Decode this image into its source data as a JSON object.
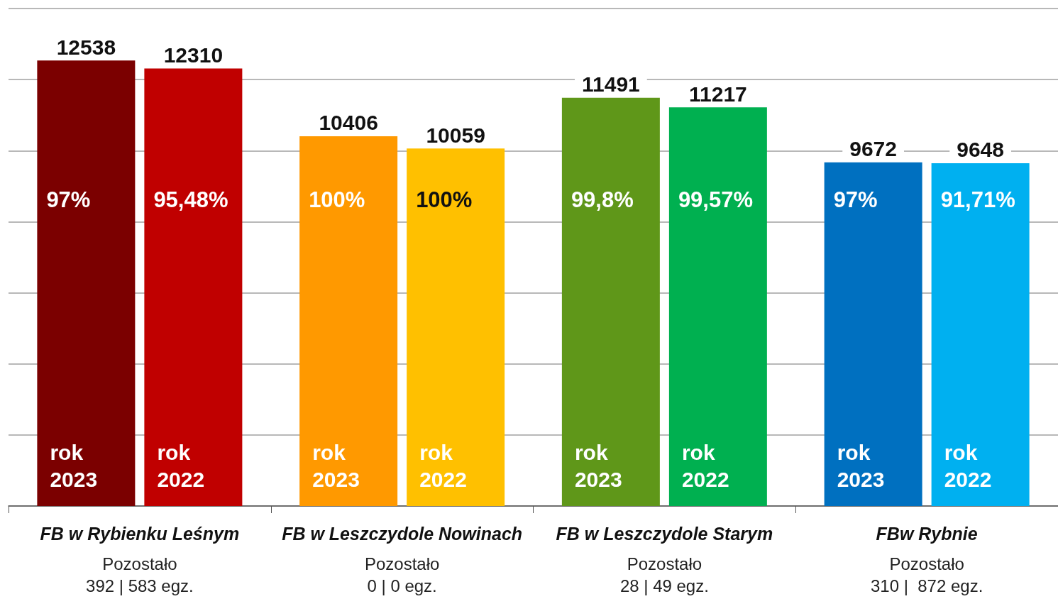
{
  "chart_data": {
    "type": "bar",
    "categories": [
      "FB w Rybienku Leśnym\n\nPozostało\n392 | 583 egz.",
      "FB w Leszczydole Nowinach\n\nPozostało\n0 | 0 egz.",
      "FB w Leszczydole Starym\n\nPozostało\n28 | 49 egz.",
      "FBw Rybnie\n\nPozostało\n310 |  872 egz."
    ],
    "series": [
      {
        "name": "rok\n2023",
        "colors": [
          "#7b0000",
          "#ff9900",
          "#5f9719",
          "#0070c0"
        ],
        "values": [
          12538,
          10406,
          11491,
          9672
        ]
      },
      {
        "name": "rok\n2022",
        "colors": [
          "#c00000",
          "#ffc000",
          "#00b050",
          "#00b0f0"
        ],
        "values": [
          12310,
          10059,
          11217,
          9648
        ]
      }
    ],
    "ylim": [
      0,
      14000
    ],
    "yticks": [
      0,
      2000,
      4000,
      6000,
      8000,
      10000,
      12000,
      14000
    ],
    "grid": "y",
    "tick_labels": "x",
    "data_labels": true,
    "annotations": [
      "97%",
      "95,48%",
      "100%",
      "100%",
      "99,8%",
      "99,57%",
      "97%",
      "91,71%"
    ]
  }
}
